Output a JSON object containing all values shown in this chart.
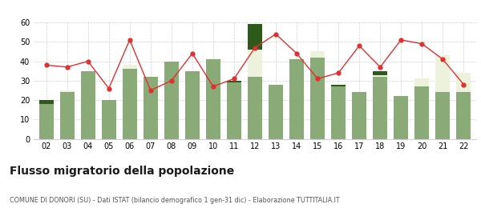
{
  "years": [
    "02",
    "03",
    "04",
    "05",
    "06",
    "07",
    "08",
    "09",
    "10",
    "11",
    "12",
    "13",
    "14",
    "15",
    "16",
    "17",
    "18",
    "19",
    "20",
    "21",
    "22"
  ],
  "iscritti_altri_comuni": [
    18,
    24,
    35,
    20,
    36,
    32,
    40,
    35,
    41,
    29,
    32,
    28,
    41,
    42,
    27,
    24,
    32,
    22,
    27,
    24,
    24
  ],
  "iscritti_estero": [
    0,
    1,
    0,
    0,
    2,
    0,
    0,
    0,
    0,
    0,
    14,
    0,
    0,
    3,
    0,
    0,
    1,
    0,
    4,
    19,
    10
  ],
  "iscritti_altri": [
    2,
    0,
    0,
    0,
    0,
    0,
    0,
    0,
    0,
    1,
    13,
    0,
    0,
    0,
    1,
    0,
    2,
    0,
    0,
    0,
    0
  ],
  "cancellati": [
    38,
    37,
    40,
    26,
    51,
    25,
    30,
    44,
    27,
    31,
    47,
    54,
    44,
    31,
    34,
    48,
    37,
    51,
    49,
    41,
    28
  ],
  "color_altri_comuni": "#8aaa78",
  "color_estero": "#edf2dc",
  "color_altri": "#2d5a1b",
  "color_cancellati": "#e03030",
  "ylim": [
    0,
    60
  ],
  "yticks": [
    0,
    10,
    20,
    30,
    40,
    50,
    60
  ],
  "title": "Flusso migratorio della popolazione",
  "subtitle": "COMUNE DI DONORI (SU) - Dati ISTAT (bilancio demografico 1 gen-31 dic) - Elaborazione TUTTITALIA.IT",
  "bg_color": "#ffffff",
  "grid_color": "#d0d0d0"
}
